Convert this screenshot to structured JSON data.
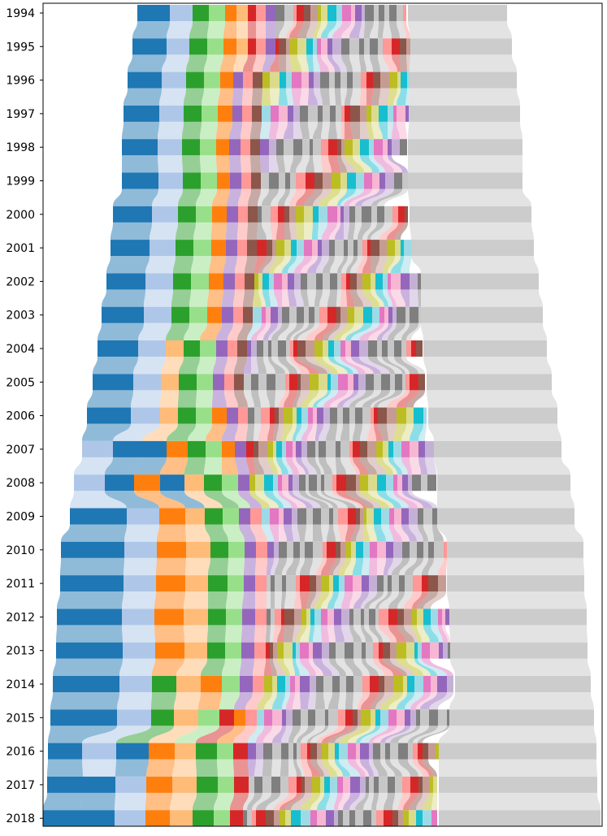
{
  "chart_data": {
    "type": "bar",
    "subtype": "ranked-stacked-flow (alluvial) chart; segments ordered by rank with flows connecting the same entity across rows",
    "title": "",
    "xlabel": "",
    "ylabel": "",
    "x_axis_visible": false,
    "grid": false,
    "legend": "none",
    "categories": [
      "1994",
      "1995",
      "1996",
      "1997",
      "1998",
      "1999",
      "2000",
      "2001",
      "2002",
      "2003",
      "2004",
      "2005",
      "2006",
      "2007",
      "2008",
      "2009",
      "2010",
      "2011",
      "2012",
      "2013",
      "2014",
      "2015",
      "2016",
      "2017",
      "2018"
    ],
    "row_extents": [
      [
        169,
        624
      ],
      [
        163,
        630
      ],
      [
        157,
        636
      ],
      [
        152,
        640
      ],
      [
        150,
        643
      ],
      [
        150,
        643
      ],
      [
        139,
        654
      ],
      [
        136,
        657
      ],
      [
        131,
        663
      ],
      [
        125,
        668
      ],
      [
        120,
        673
      ],
      [
        114,
        679
      ],
      [
        107,
        686
      ],
      [
        101,
        691
      ],
      [
        91,
        702
      ],
      [
        86,
        707
      ],
      [
        75,
        718
      ],
      [
        74,
        719
      ],
      [
        70,
        722
      ],
      [
        69,
        723
      ],
      [
        65,
        727
      ],
      [
        62,
        731
      ],
      [
        59,
        734
      ],
      [
        58,
        735
      ],
      [
        53,
        739
      ]
    ],
    "leading_segments": [
      [
        [
          "blue",
          40
        ],
        [
          "light-blue",
          28
        ],
        [
          "green",
          20
        ],
        [
          "light-green",
          20
        ],
        [
          "orange",
          14
        ],
        [
          "light-orange",
          14
        ],
        [
          "red",
          10
        ],
        [
          "pink",
          12
        ],
        [
          "purple",
          12
        ]
      ],
      [
        [
          "blue",
          42
        ],
        [
          "light-blue",
          28
        ],
        [
          "green",
          22
        ],
        [
          "light-green",
          20
        ],
        [
          "orange",
          16
        ],
        [
          "light-orange",
          14
        ],
        [
          "red",
          10
        ],
        [
          "pink",
          12
        ],
        [
          "purple",
          12
        ]
      ],
      [
        [
          "blue",
          42
        ],
        [
          "light-blue",
          30
        ],
        [
          "green",
          22
        ],
        [
          "light-green",
          20
        ],
        [
          "orange",
          16
        ],
        [
          "purple",
          12
        ],
        [
          "pink",
          12
        ],
        [
          "brown",
          12
        ]
      ],
      [
        [
          "blue",
          44
        ],
        [
          "light-blue",
          30
        ],
        [
          "green",
          22
        ],
        [
          "light-green",
          20
        ],
        [
          "orange",
          18
        ],
        [
          "purple",
          12
        ],
        [
          "pink",
          12
        ],
        [
          "brown",
          12
        ]
      ],
      [
        [
          "blue",
          44
        ],
        [
          "light-blue",
          30
        ],
        [
          "green",
          22
        ],
        [
          "light-green",
          20
        ],
        [
          "orange",
          16
        ],
        [
          "purple",
          14
        ],
        [
          "pink",
          12
        ],
        [
          "brown",
          12
        ]
      ],
      [
        [
          "blue",
          45
        ],
        [
          "light-blue",
          30
        ],
        [
          "green",
          22
        ],
        [
          "light-green",
          20
        ],
        [
          "orange",
          16
        ],
        [
          "purple",
          14
        ],
        [
          "pink",
          12
        ],
        [
          "brown",
          12
        ]
      ],
      [
        [
          "blue",
          48
        ],
        [
          "light-blue",
          32
        ],
        [
          "green",
          22
        ],
        [
          "light-green",
          20
        ],
        [
          "orange",
          18
        ],
        [
          "purple",
          14
        ],
        [
          "pink",
          12
        ],
        [
          "brown",
          12
        ]
      ],
      [
        [
          "blue",
          48
        ],
        [
          "light-blue",
          32
        ],
        [
          "green",
          22
        ],
        [
          "light-green",
          22
        ],
        [
          "orange",
          18
        ],
        [
          "purple",
          14
        ],
        [
          "pink",
          12
        ],
        [
          "brown",
          12
        ]
      ],
      [
        [
          "blue",
          48
        ],
        [
          "light-blue",
          34
        ],
        [
          "green",
          22
        ],
        [
          "light-green",
          22
        ],
        [
          "orange",
          18
        ],
        [
          "purple",
          14
        ],
        [
          "pink",
          12
        ],
        [
          "brown",
          12
        ]
      ],
      [
        [
          "blue",
          52
        ],
        [
          "light-blue",
          34
        ],
        [
          "green",
          22
        ],
        [
          "light-green",
          22
        ],
        [
          "orange",
          18
        ],
        [
          "purple",
          14
        ],
        [
          "pink",
          12
        ],
        [
          "brown",
          12
        ]
      ],
      [
        [
          "blue",
          50
        ],
        [
          "light-blue",
          34
        ],
        [
          "light-orange",
          22
        ],
        [
          "green",
          20
        ],
        [
          "light-green",
          20
        ],
        [
          "purple",
          14
        ],
        [
          "pink",
          12
        ],
        [
          "brown",
          12
        ]
      ],
      [
        [
          "blue",
          50
        ],
        [
          "light-blue",
          34
        ],
        [
          "light-orange",
          22
        ],
        [
          "green",
          22
        ],
        [
          "light-green",
          20
        ],
        [
          "purple",
          14
        ],
        [
          "pink",
          12
        ],
        [
          "brown",
          12
        ]
      ],
      [
        [
          "blue",
          54
        ],
        [
          "light-blue",
          36
        ],
        [
          "light-orange",
          22
        ],
        [
          "green",
          22
        ],
        [
          "light-green",
          20
        ],
        [
          "orange",
          18
        ],
        [
          "purple",
          14
        ],
        [
          "pink",
          12
        ]
      ],
      [
        [
          "light-blue",
          38
        ],
        [
          "blue",
          36
        ],
        [
          "blue",
          30
        ],
        [
          "orange",
          26
        ],
        [
          "green",
          22
        ],
        [
          "light-green",
          20
        ],
        [
          "orange",
          16
        ],
        [
          "purple",
          14
        ]
      ],
      [
        [
          "light-blue",
          38
        ],
        [
          "blue",
          36
        ],
        [
          "orange",
          32
        ],
        [
          "blue",
          30
        ],
        [
          "light-orange",
          24
        ],
        [
          "green",
          22
        ],
        [
          "light-green",
          20
        ],
        [
          "purple",
          14
        ]
      ],
      [
        [
          "blue",
          70
        ],
        [
          "light-blue",
          40
        ],
        [
          "orange",
          32
        ],
        [
          "light-orange",
          24
        ],
        [
          "green",
          22
        ],
        [
          "light-green",
          20
        ],
        [
          "purple",
          14
        ],
        [
          "pink",
          14
        ]
      ],
      [
        [
          "blue",
          78
        ],
        [
          "light-blue",
          40
        ],
        [
          "orange",
          36
        ],
        [
          "light-orange",
          30
        ],
        [
          "green",
          22
        ],
        [
          "light-green",
          20
        ],
        [
          "purple",
          14
        ],
        [
          "pink",
          14
        ]
      ],
      [
        [
          "blue",
          78
        ],
        [
          "light-blue",
          40
        ],
        [
          "orange",
          36
        ],
        [
          "light-orange",
          28
        ],
        [
          "green",
          24
        ],
        [
          "light-green",
          20
        ],
        [
          "purple",
          14
        ],
        [
          "pink",
          14
        ]
      ],
      [
        [
          "blue",
          80
        ],
        [
          "light-blue",
          40
        ],
        [
          "orange",
          36
        ],
        [
          "light-orange",
          30
        ],
        [
          "green",
          22
        ],
        [
          "light-green",
          20
        ],
        [
          "purple",
          16
        ],
        [
          "pink",
          14
        ]
      ],
      [
        [
          "blue",
          82
        ],
        [
          "light-blue",
          40
        ],
        [
          "orange",
          36
        ],
        [
          "light-orange",
          28
        ],
        [
          "green",
          22
        ],
        [
          "light-green",
          20
        ],
        [
          "purple",
          16
        ],
        [
          "pink",
          14
        ]
      ],
      [
        [
          "blue",
          82
        ],
        [
          "light-blue",
          40
        ],
        [
          "green",
          30
        ],
        [
          "light-orange",
          30
        ],
        [
          "orange",
          26
        ],
        [
          "light-green",
          22
        ],
        [
          "purple",
          16
        ],
        [
          "pink",
          14
        ]
      ],
      [
        [
          "blue",
          82
        ],
        [
          "light-blue",
          42
        ],
        [
          "green",
          28
        ],
        [
          "light-orange",
          30
        ],
        [
          "light-green",
          26
        ],
        [
          "red",
          18
        ],
        [
          "orange",
          14
        ],
        [
          "pink",
          14
        ]
      ],
      [
        [
          "blue",
          42
        ],
        [
          "light-blue",
          42
        ],
        [
          "blue",
          40
        ],
        [
          "orange",
          32
        ],
        [
          "light-orange",
          26
        ],
        [
          "green",
          26
        ],
        [
          "light-green",
          20
        ],
        [
          "red",
          18
        ]
      ],
      [
        [
          "blue",
          44
        ],
        [
          "blue",
          40
        ],
        [
          "light-blue",
          38
        ],
        [
          "orange",
          32
        ],
        [
          "light-orange",
          30
        ],
        [
          "green",
          26
        ],
        [
          "light-green",
          20
        ],
        [
          "red",
          18
        ]
      ],
      [
        [
          "blue",
          46
        ],
        [
          "blue",
          42
        ],
        [
          "light-blue",
          38
        ],
        [
          "orange",
          30
        ],
        [
          "light-orange",
          28
        ],
        [
          "green",
          26
        ],
        [
          "light-green",
          20
        ],
        [
          "red",
          16
        ]
      ]
    ],
    "tail_grey_start": [
      502,
      505,
      504,
      503,
      502,
      502,
      504,
      506,
      518,
      518,
      521,
      525,
      527,
      534,
      538,
      538,
      550,
      550,
      553,
      554,
      560,
      553,
      540,
      540,
      540
    ],
    "colors": {
      "blue": "#1f77b4",
      "light-blue": "#aec7e8",
      "orange": "#ff7f0e",
      "light-orange": "#ffbb78",
      "green": "#2ca02c",
      "light-green": "#98df8a",
      "red": "#d62728",
      "pink": "#ff9896",
      "purple": "#9467bd",
      "light-purple": "#c5b0d5",
      "brown": "#8c564b",
      "light-brown": "#c49c94",
      "magenta": "#e377c2",
      "light-magenta": "#f7b6d2",
      "grey": "#7f7f7f",
      "light-grey": "#c7c7c7",
      "olive": "#bcbd22",
      "light-olive": "#dbdb8d",
      "cyan": "#17becf",
      "light-cyan": "#9edae5",
      "other": "#cccccc",
      "other_flow": "#e3e3e3",
      "frame": "#000000"
    }
  }
}
